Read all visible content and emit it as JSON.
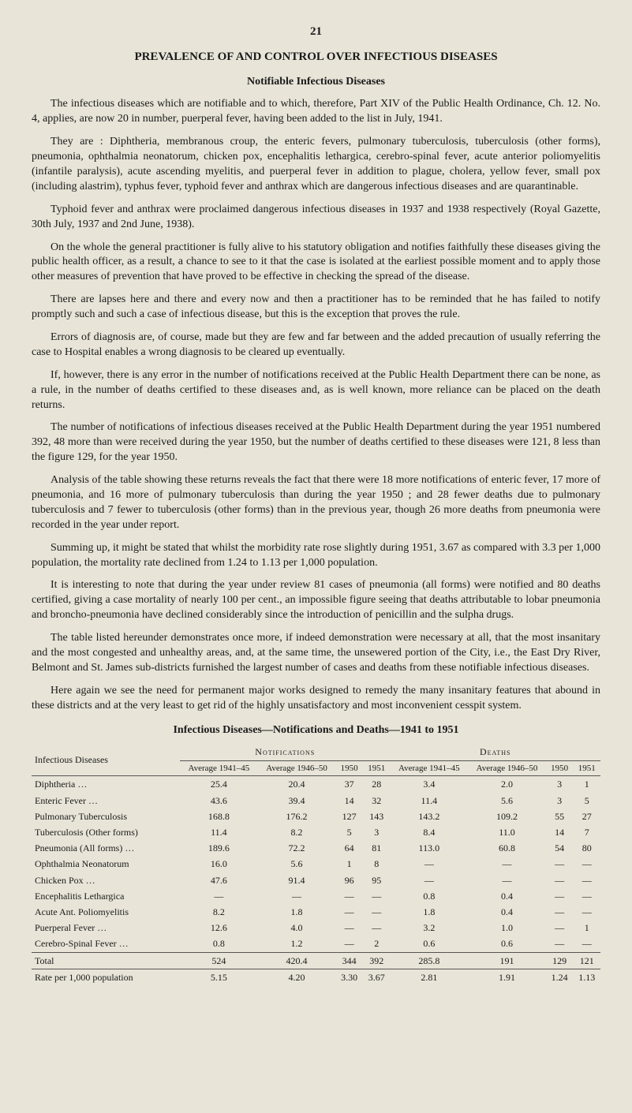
{
  "page_number": "21",
  "title": "PREVALENCE OF AND CONTROL OVER INFECTIOUS DISEASES",
  "subtitle": "Notifiable Infectious Diseases",
  "paragraphs": {
    "p1": "The infectious diseases which are notifiable and to which, therefore, Part XIV of the Public Health Ordinance, Ch. 12. No. 4, applies, are now 20 in number, puerperal fever, having been added to the list in July, 1941.",
    "p2": "They are : Diphtheria, membranous croup, the enteric fevers, pulmonary tuberculosis, tuberculosis (other forms), pneumonia, ophthalmia neonatorum, chicken pox, encephalitis lethargica, cerebro-spinal fever, acute anterior poliomyelitis (infantile paralysis), acute ascending myelitis, and puerperal fever in addition to plague, cholera, yellow fever, small pox (including alastrim), typhus fever, typhoid fever and anthrax which are dangerous infectious diseases and are quarantinable.",
    "p3": "Typhoid fever and anthrax were proclaimed dangerous infectious diseases in 1937 and 1938 respectively (Royal Gazette, 30th July, 1937 and 2nd June, 1938).",
    "p4": "On the whole the general practitioner is fully alive to his statutory obligation and notifies faithfully these diseases giving the public health officer, as a result, a chance to see to it that the case is isolated at the earliest possible moment and to apply those other measures of prevention that have proved to be effective in checking the spread of the disease.",
    "p5": "There are lapses here and there and every now and then a practitioner has to be reminded that he has failed to notify promptly such and such a case of infectious disease, but this is the exception that proves the rule.",
    "p6": "Errors of diagnosis are, of course, made but they are few and far between and the added precaution of usually referring the case to Hospital enables a wrong diagnosis to be cleared up eventually.",
    "p7": "If, however, there is any error in the number of notifications received at the Public Health Department there can be none, as a rule, in the number of deaths certified to these diseases and, as is well known, more reliance can be placed on the death returns.",
    "p8": "The number of notifications of infectious diseases received at the Public Health Department during the year 1951 numbered 392, 48 more than were received during the year 1950, but the number of deaths certified to these diseases were 121, 8 less than the figure 129, for the year 1950.",
    "p9": "Analysis of the table showing these returns reveals the fact that there were 18 more notifications of enteric fever, 17 more of pneumonia, and 16 more of pulmonary tuberculosis than during the year 1950 ; and 28 fewer deaths due to pulmonary tuberculosis and 7 fewer to tuberculosis (other forms) than in the previous year, though 26 more deaths from pneumonia were recorded in the year under report.",
    "p10": "Summing up, it might be stated that whilst the morbidity rate rose slightly during 1951, 3.67 as compared with 3.3 per 1,000 population, the mortality rate declined from 1.24 to 1.13 per 1,000 population.",
    "p11": "It is interesting to note that during the year under review 81 cases of pneumonia (all forms) were notified and 80 deaths certified, giving a case mortality of nearly 100 per cent., an impossible figure seeing that deaths attributable to lobar pneumonia and broncho-pneumonia have declined considerably since the introduction of penicillin and the sulpha drugs.",
    "p12": "The table listed hereunder demonstrates once more, if indeed demonstration were necessary at all, that the most insanitary and the most congested and unhealthy areas, and, at the same time, the unsewered portion of the City, i.e., the East Dry River, Belmont and St. James sub-districts furnished the largest number of cases and deaths from these notifiable infectious diseases.",
    "p13": "Here again we see the need for permanent major works designed to remedy the many insanitary features that abound in these districts and at the very least to get rid of the highly unsatisfactory and most inconvenient cesspit system."
  },
  "table": {
    "caption": "Infectious Diseases—Notifications and Deaths—1941 to 1951",
    "header": {
      "col_diseases": "Infectious Diseases",
      "group_notifications": "Notifications",
      "group_deaths": "Deaths",
      "sub": {
        "avg_41_45": "Average 1941–45",
        "avg_46_50": "Average 1946–50",
        "y1950": "1950",
        "y1951": "1951"
      }
    },
    "rows": [
      {
        "name": "Diphtheria …",
        "n": [
          "25.4",
          "20.4",
          "37",
          "28"
        ],
        "d": [
          "3.4",
          "2.0",
          "3",
          "1"
        ]
      },
      {
        "name": "Enteric Fever …",
        "n": [
          "43.6",
          "39.4",
          "14",
          "32"
        ],
        "d": [
          "11.4",
          "5.6",
          "3",
          "5"
        ]
      },
      {
        "name": "Pulmonary Tuberculosis",
        "n": [
          "168.8",
          "176.2",
          "127",
          "143"
        ],
        "d": [
          "143.2",
          "109.2",
          "55",
          "27"
        ]
      },
      {
        "name": "Tuberculosis (Other forms)",
        "n": [
          "11.4",
          "8.2",
          "5",
          "3"
        ],
        "d": [
          "8.4",
          "11.0",
          "14",
          "7"
        ]
      },
      {
        "name": "Pneumonia (All forms) …",
        "n": [
          "189.6",
          "72.2",
          "64",
          "81"
        ],
        "d": [
          "113.0",
          "60.8",
          "54",
          "80"
        ]
      },
      {
        "name": "Ophthalmia Neonatorum",
        "n": [
          "16.0",
          "5.6",
          "1",
          "8"
        ],
        "d": [
          "—",
          "—",
          "—",
          "—"
        ]
      },
      {
        "name": "Chicken Pox …",
        "n": [
          "47.6",
          "91.4",
          "96",
          "95"
        ],
        "d": [
          "—",
          "—",
          "—",
          "—"
        ]
      },
      {
        "name": "Encephalitis Lethargica",
        "n": [
          "—",
          "—",
          "—",
          "—"
        ],
        "d": [
          "0.8",
          "0.4",
          "—",
          "—"
        ]
      },
      {
        "name": "Acute Ant. Poliomyelitis",
        "n": [
          "8.2",
          "1.8",
          "—",
          "—"
        ],
        "d": [
          "1.8",
          "0.4",
          "—",
          "—"
        ]
      },
      {
        "name": "Puerperal Fever …",
        "n": [
          "12.6",
          "4.0",
          "—",
          "—"
        ],
        "d": [
          "3.2",
          "1.0",
          "—",
          "1"
        ]
      },
      {
        "name": "Cerebro-Spinal Fever …",
        "n": [
          "0.8",
          "1.2",
          "—",
          "2"
        ],
        "d": [
          "0.6",
          "0.6",
          "—",
          "—"
        ]
      }
    ],
    "total": {
      "name": "Total",
      "n": [
        "524",
        "420.4",
        "344",
        "392"
      ],
      "d": [
        "285.8",
        "191",
        "129",
        "121"
      ]
    },
    "rate": {
      "name": "Rate per 1,000 population",
      "n": [
        "5.15",
        "4.20",
        "3.30",
        "3.67"
      ],
      "d": [
        "2.81",
        "1.91",
        "1.24",
        "1.13"
      ]
    }
  },
  "style": {
    "background": "#e8e4d8",
    "text_color": "#1a1a1a",
    "font_family": "Times New Roman",
    "body_fontsize": 14,
    "table_fontsize": 12,
    "border_color": "#555"
  }
}
